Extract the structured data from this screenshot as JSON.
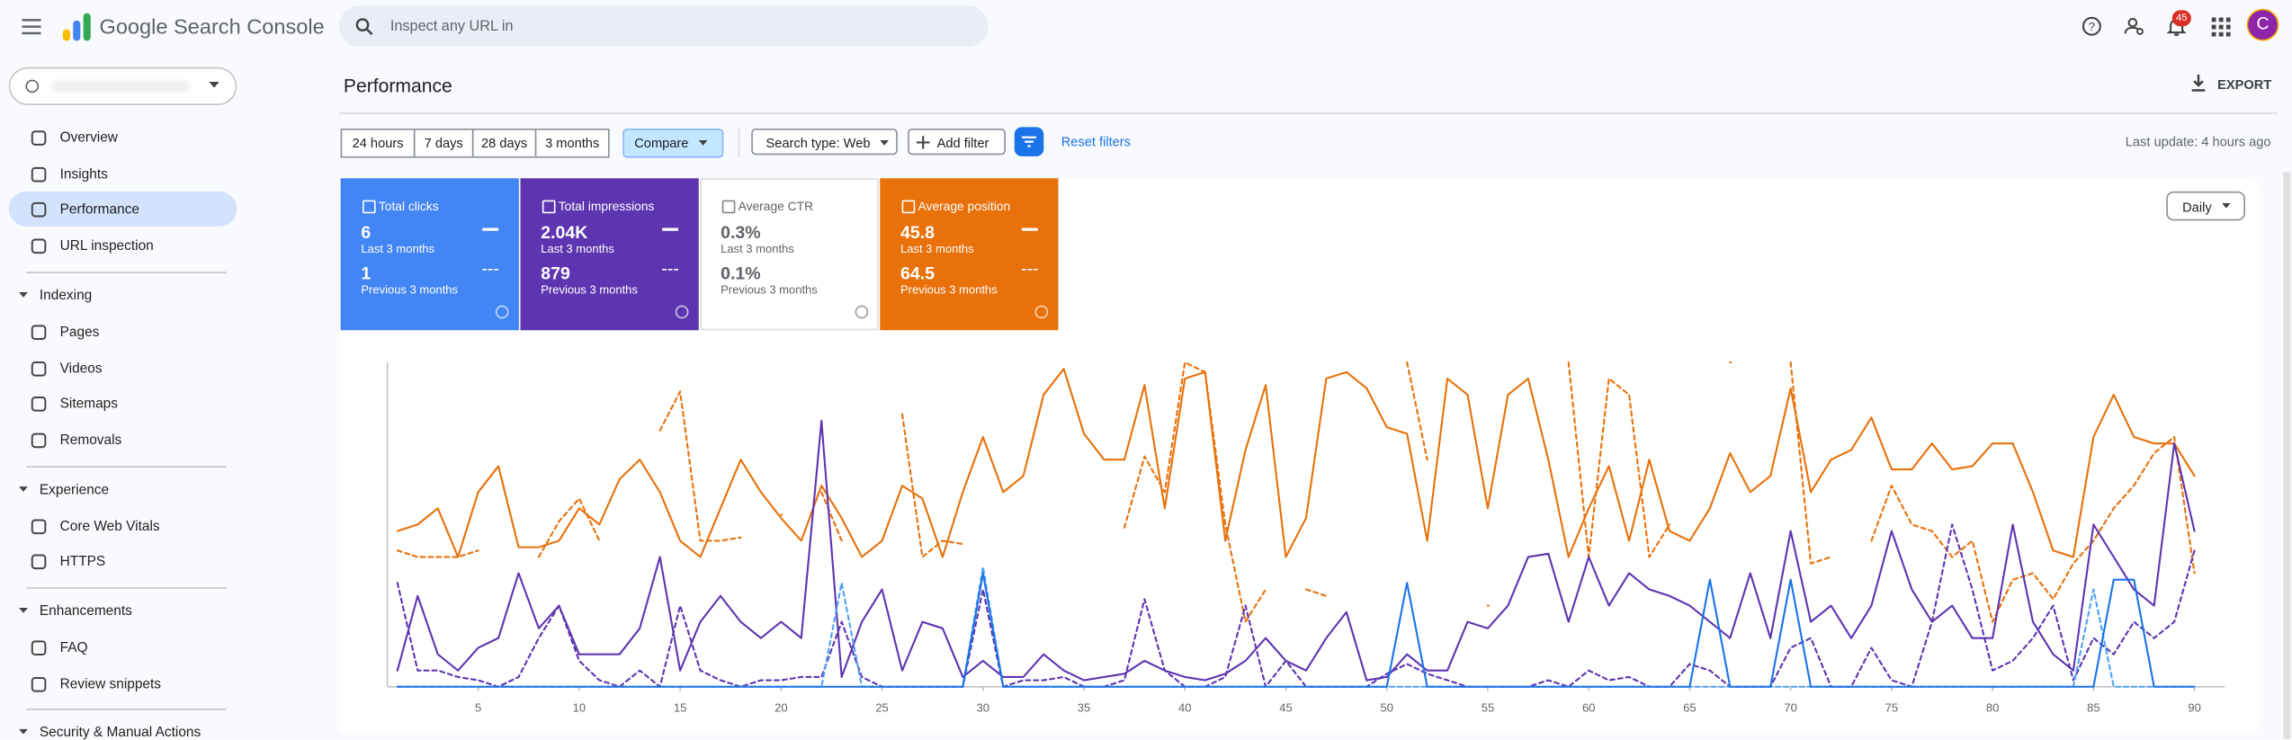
{
  "header": {
    "product": "Google Search Console",
    "search_placeholder": "Inspect any URL in",
    "notification_count": "45",
    "avatar": "C"
  },
  "sidebar": {
    "items": [
      "Overview",
      "Insights",
      "Performance",
      "URL inspection"
    ],
    "sections": [
      {
        "title": "Indexing",
        "items": [
          "Pages",
          "Videos",
          "Sitemaps",
          "Removals"
        ]
      },
      {
        "title": "Experience",
        "items": [
          "Core Web Vitals",
          "HTTPS"
        ]
      },
      {
        "title": "Enhancements",
        "items": [
          "FAQ",
          "Review snippets"
        ]
      },
      {
        "title": "Security & Manual Actions"
      }
    ]
  },
  "page": {
    "title": "Performance",
    "export": "EXPORT",
    "date_ranges": [
      "24 hours",
      "7 days",
      "28 days",
      "3 months"
    ],
    "compare": "Compare",
    "search_type": "Search type: Web",
    "add_filter": "Add filter",
    "reset_filters": "Reset filters",
    "last_update": "Last update: 4 hours ago",
    "granularity": "Daily",
    "metrics": [
      {
        "name": "Total clicks",
        "current": "6",
        "current_period": "Last 3 months",
        "previous": "1",
        "previous_period": "Previous 3 months",
        "checked": true,
        "color": "#4285f4"
      },
      {
        "name": "Total impressions",
        "current": "2.04K",
        "current_period": "Last 3 months",
        "previous": "879",
        "previous_period": "Previous 3 months",
        "checked": true,
        "color": "#5e35b1"
      },
      {
        "name": "Average CTR",
        "current": "0.3%",
        "current_period": "Last 3 months",
        "previous": "0.1%",
        "previous_period": "Previous 3 months",
        "checked": false,
        "color": "#ffffff"
      },
      {
        "name": "Average position",
        "current": "45.8",
        "current_period": "Last 3 months",
        "previous": "64.5",
        "previous_period": "Previous 3 months",
        "checked": true,
        "color": "#e8710a"
      }
    ]
  },
  "chart_data": {
    "type": "line",
    "x": [
      1,
      2,
      3,
      4,
      5,
      6,
      7,
      8,
      9,
      10,
      11,
      12,
      13,
      14,
      15,
      16,
      17,
      18,
      19,
      20,
      21,
      22,
      23,
      24,
      25,
      26,
      27,
      28,
      29,
      30,
      31,
      32,
      33,
      34,
      35,
      36,
      37,
      38,
      39,
      40,
      41,
      42,
      43,
      44,
      45,
      46,
      47,
      48,
      49,
      50,
      51,
      52,
      53,
      54,
      55,
      56,
      57,
      58,
      59,
      60,
      61,
      62,
      63,
      64,
      65,
      66,
      67,
      68,
      69,
      70,
      71,
      72,
      73,
      74,
      75,
      76,
      77,
      78,
      79,
      80,
      81,
      82,
      83,
      84,
      85,
      86,
      87,
      88,
      89,
      90
    ],
    "xlim": [
      0.5,
      91.5
    ],
    "xticks": [
      5,
      10,
      15,
      20,
      25,
      30,
      35,
      40,
      45,
      50,
      55,
      60,
      65,
      70,
      75,
      80,
      85,
      90
    ],
    "ylim": [
      0,
      100
    ],
    "series": [
      {
        "color": "#1a73e8",
        "style": "solid",
        "values": [
          0,
          0,
          0,
          0,
          0,
          0,
          0,
          0,
          0,
          0,
          0,
          0,
          0,
          0,
          0,
          0,
          0,
          0,
          0,
          0,
          0,
          0,
          0,
          0,
          0,
          0,
          0,
          0,
          0,
          35,
          0,
          0,
          0,
          0,
          0,
          0,
          0,
          0,
          0,
          0,
          0,
          0,
          0,
          0,
          0,
          0,
          0,
          0,
          0,
          0,
          32,
          0,
          0,
          0,
          0,
          0,
          0,
          0,
          0,
          0,
          0,
          0,
          0,
          0,
          0,
          33,
          0,
          0,
          0,
          33,
          0,
          0,
          0,
          0,
          0,
          0,
          0,
          0,
          0,
          0,
          0,
          0,
          0,
          0,
          0,
          33,
          33,
          0,
          0,
          0
        ]
      },
      {
        "color": "#4da3f7",
        "style": "dashed",
        "values": [
          0,
          0,
          0,
          0,
          0,
          0,
          0,
          0,
          0,
          0,
          0,
          0,
          0,
          0,
          0,
          0,
          0,
          0,
          0,
          0,
          0,
          0,
          32,
          0,
          0,
          0,
          0,
          0,
          0,
          37,
          0,
          0,
          0,
          0,
          0,
          0,
          0,
          0,
          0,
          0,
          0,
          0,
          0,
          0,
          0,
          0,
          0,
          0,
          0,
          0,
          0,
          0,
          0,
          0,
          0,
          0,
          0,
          0,
          0,
          0,
          0,
          0,
          0,
          0,
          0,
          0,
          0,
          0,
          0,
          0,
          0,
          0,
          0,
          0,
          0,
          0,
          0,
          0,
          0,
          0,
          0,
          0,
          0,
          0,
          30,
          0,
          0,
          0,
          0,
          0
        ]
      },
      {
        "color": "#5e35b1",
        "style": "solid",
        "values": [
          5,
          28,
          10,
          5,
          12,
          15,
          35,
          18,
          25,
          10,
          10,
          10,
          18,
          40,
          5,
          20,
          28,
          20,
          15,
          20,
          15,
          82,
          3,
          20,
          30,
          5,
          20,
          18,
          3,
          8,
          3,
          3,
          10,
          5,
          2,
          3,
          4,
          8,
          5,
          3,
          2,
          4,
          8,
          15,
          8,
          5,
          15,
          23,
          2,
          3,
          10,
          5,
          5,
          20,
          18,
          25,
          40,
          41,
          20,
          40,
          25,
          35,
          30,
          28,
          25,
          20,
          15,
          35,
          15,
          48,
          20,
          25,
          15,
          25,
          48,
          30,
          20,
          25,
          15,
          15,
          50,
          20,
          10,
          5,
          50,
          40,
          30,
          25,
          75,
          48
        ]
      },
      {
        "color": "#5e35b1",
        "style": "dashed",
        "values": [
          32,
          5,
          5,
          3,
          2,
          0,
          3,
          15,
          25,
          8,
          2,
          0,
          5,
          0,
          25,
          5,
          2,
          0,
          2,
          2,
          3,
          3,
          20,
          3,
          0,
          0,
          0,
          0,
          0,
          30,
          0,
          2,
          2,
          3,
          0,
          0,
          2,
          27,
          5,
          0,
          0,
          3,
          25,
          0,
          8,
          0,
          0,
          0,
          0,
          4,
          7,
          4,
          2,
          0,
          0,
          0,
          0,
          2,
          0,
          5,
          2,
          3,
          0,
          0,
          7,
          5,
          0,
          0,
          0,
          12,
          15,
          0,
          0,
          12,
          2,
          0,
          20,
          50,
          30,
          5,
          8,
          15,
          25,
          2,
          15,
          10,
          20,
          15,
          20,
          42
        ]
      },
      {
        "color": "#e8710a",
        "style": "solid",
        "values": [
          48,
          50,
          55,
          40,
          60,
          68,
          43,
          43,
          45,
          55,
          50,
          64,
          70,
          60,
          45,
          40,
          55,
          70,
          60,
          52,
          45,
          62,
          52,
          40,
          45,
          62,
          58,
          40,
          60,
          77,
          60,
          65,
          90,
          98,
          78,
          70,
          70,
          93,
          55,
          95,
          97,
          45,
          73,
          93,
          40,
          52,
          95,
          97,
          92,
          80,
          78,
          45,
          95,
          90,
          55,
          90,
          95,
          70,
          40,
          55,
          68,
          45,
          70,
          48,
          45,
          55,
          72,
          60,
          65,
          92,
          60,
          70,
          73,
          83,
          67,
          67,
          75,
          67,
          68,
          75,
          75,
          60,
          42,
          40,
          77,
          90,
          77,
          75,
          75,
          65
        ]
      },
      {
        "color": "#e8710a",
        "style": "dashed",
        "values": [
          42,
          40,
          40,
          40,
          42,
          null,
          null,
          40,
          51,
          58,
          45,
          null,
          null,
          79,
          91,
          45,
          45,
          46,
          null,
          53,
          null,
          60,
          45,
          null,
          null,
          84,
          40,
          45,
          44,
          null,
          null,
          null,
          null,
          null,
          null,
          null,
          49,
          71,
          60,
          100,
          97,
          50,
          20,
          30,
          null,
          30,
          28,
          null,
          null,
          null,
          100,
          70,
          null,
          null,
          25,
          null,
          null,
          null,
          100,
          40,
          95,
          90,
          40,
          50,
          null,
          null,
          100,
          null,
          null,
          100,
          38,
          40,
          null,
          45,
          62,
          50,
          48,
          40,
          45,
          20,
          33,
          35,
          27,
          38,
          45,
          55,
          62,
          72,
          77,
          35
        ]
      }
    ]
  }
}
